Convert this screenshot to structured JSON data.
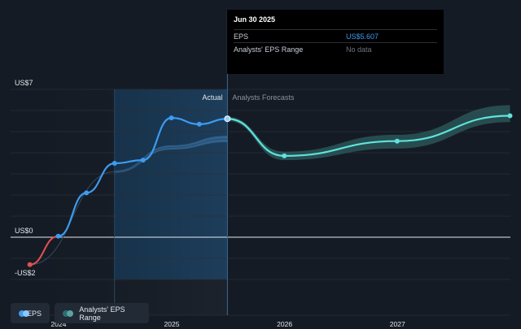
{
  "tooltip": {
    "date": "Jun 30 2025",
    "rows": [
      {
        "label": "EPS",
        "value": "US$5.607"
      },
      {
        "label": "Analysts' EPS Range",
        "value": "No data"
      }
    ]
  },
  "legend": {
    "eps": "EPS",
    "range": "Analysts' EPS Range"
  },
  "colors": {
    "background": "#151b24",
    "eps_positive": "#3d9bf0",
    "eps_negative": "#e0524f",
    "forecast": "#5fe3dc",
    "range_band": "#2d5e5f",
    "actual_range": "#3f7fb8",
    "highlight": "#1c3a55"
  },
  "chart_data": {
    "type": "line",
    "title": "",
    "ylim": [
      -2,
      7
    ],
    "y_tick_labels": [
      {
        "value": 7,
        "label": "US$7"
      },
      {
        "value": 0,
        "label": "US$0"
      },
      {
        "value": -2,
        "label": "-US$2"
      }
    ],
    "x_tick_labels": [
      "2024",
      "2025",
      "2026",
      "2027"
    ],
    "region_labels": {
      "actual": "Actual",
      "forecast": "Analysts Forecasts"
    },
    "divider_date": "2025-06-30",
    "series": [
      {
        "name": "EPS",
        "points": [
          {
            "x": "2023-09-30",
            "y": -1.3
          },
          {
            "x": "2023-12-31",
            "y": 0.05
          },
          {
            "x": "2024-03-31",
            "y": 2.1
          },
          {
            "x": "2024-06-30",
            "y": 3.5
          },
          {
            "x": "2024-09-30",
            "y": 3.65
          },
          {
            "x": "2024-12-31",
            "y": 5.65
          },
          {
            "x": "2025-03-31",
            "y": 5.35
          },
          {
            "x": "2025-06-30",
            "y": 5.607
          }
        ]
      },
      {
        "name": "Analysts Forecasts",
        "points": [
          {
            "x": "2025-06-30",
            "y": 5.607
          },
          {
            "x": "2025-12-31",
            "y": 3.85
          },
          {
            "x": "2026-12-31",
            "y": 4.55
          },
          {
            "x": "2027-12-31",
            "y": 5.75
          }
        ]
      },
      {
        "name": "Analysts' EPS Range",
        "low": [
          {
            "x": "2025-06-30",
            "y": 5.5
          },
          {
            "x": "2025-12-31",
            "y": 3.65
          },
          {
            "x": "2026-12-31",
            "y": 4.2
          },
          {
            "x": "2027-12-31",
            "y": 5.45
          }
        ],
        "high": [
          {
            "x": "2025-06-30",
            "y": 5.7
          },
          {
            "x": "2025-12-31",
            "y": 4.05
          },
          {
            "x": "2026-12-31",
            "y": 4.85
          },
          {
            "x": "2027-12-31",
            "y": 6.25
          }
        ]
      },
      {
        "name": "Actual EPS Range",
        "low": [
          {
            "x": "2024-06-30",
            "y": 3.05
          },
          {
            "x": "2024-12-31",
            "y": 4.15
          },
          {
            "x": "2025-06-30",
            "y": 4.5
          }
        ],
        "high": [
          {
            "x": "2024-06-30",
            "y": 3.15
          },
          {
            "x": "2024-12-31",
            "y": 4.35
          },
          {
            "x": "2025-06-30",
            "y": 4.8
          }
        ]
      }
    ]
  }
}
